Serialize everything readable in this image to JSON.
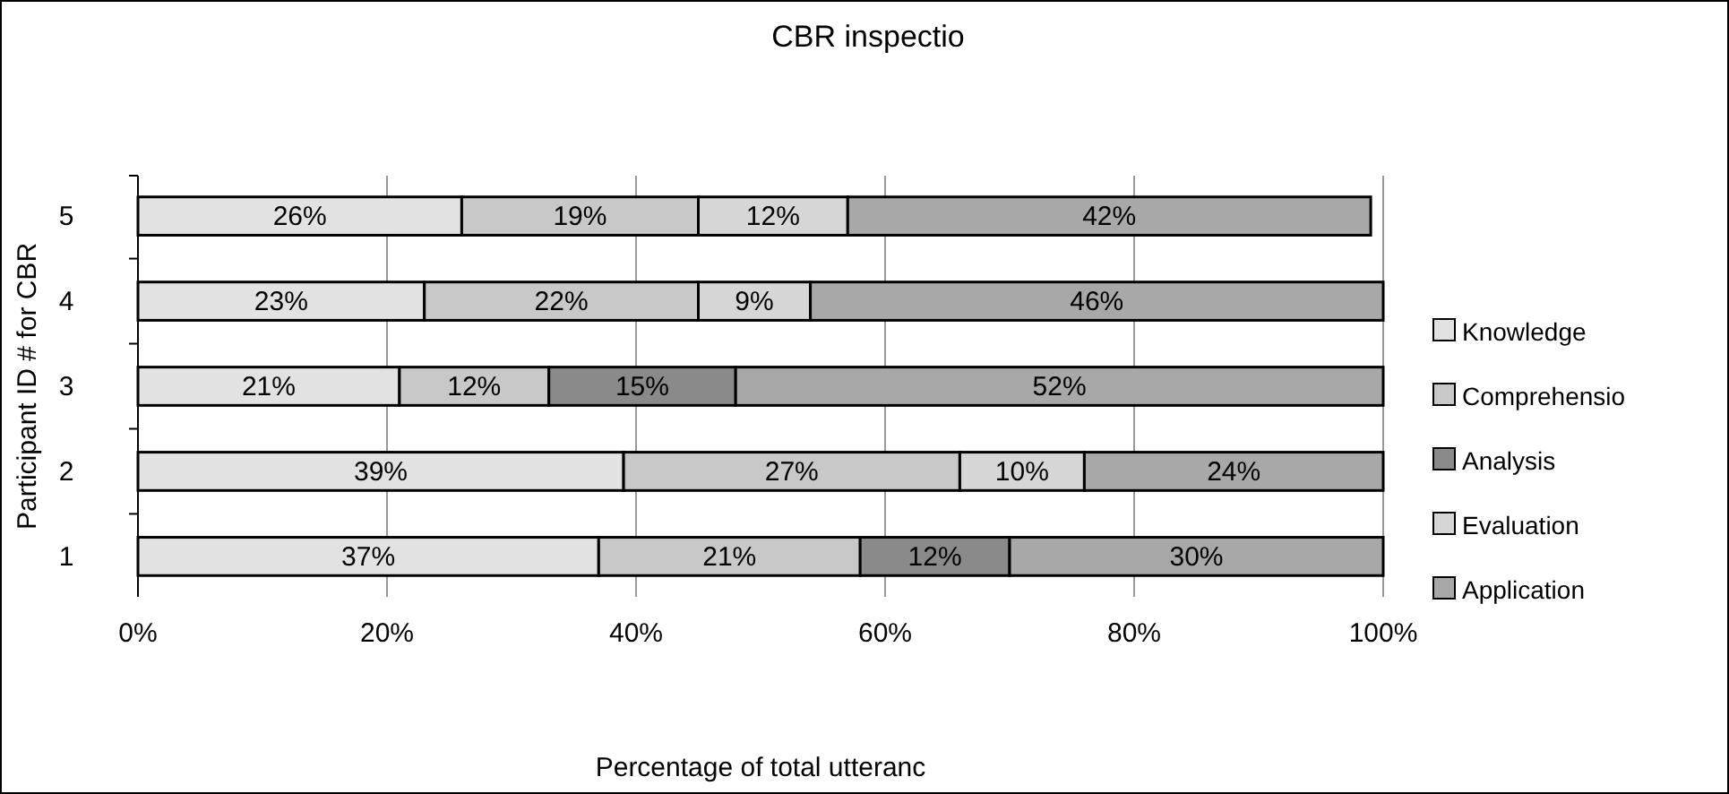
{
  "chart_data": {
    "type": "bar",
    "orientation": "horizontal",
    "stacked": true,
    "title": "CBR inspectio",
    "xlabel": "Percentage of total utteranc",
    "ylabel": "Participant ID # for CBR",
    "categories": [
      "5",
      "4",
      "3",
      "2",
      "1"
    ],
    "series": [
      {
        "name": "Knowledge",
        "color": "#e2e2e2",
        "values": [
          26,
          23,
          21,
          39,
          37
        ],
        "value_labels": [
          "26%",
          "23%",
          "21%",
          "39%",
          "37%"
        ]
      },
      {
        "name": "Comprehensio",
        "color": "#c8c8c8",
        "values": [
          19,
          22,
          12,
          27,
          21
        ],
        "value_labels": [
          "19%",
          "22%",
          "12%",
          "27%",
          "21%"
        ]
      },
      {
        "name": "Analysis",
        "color": "#8a8a8a",
        "values": [
          null,
          null,
          15,
          null,
          12
        ],
        "value_labels": [
          null,
          null,
          "15%",
          null,
          "12%"
        ]
      },
      {
        "name": "Evaluation",
        "color": "#d6d6d6",
        "values": [
          12,
          9,
          null,
          10,
          null
        ],
        "value_labels": [
          "12%",
          "9%",
          null,
          "10%",
          null
        ]
      },
      {
        "name": "Application",
        "color": "#a8a8a8",
        "values": [
          42,
          46,
          52,
          24,
          30
        ],
        "value_labels": [
          "42%",
          "46%",
          "52%",
          "24%",
          "30%"
        ]
      }
    ],
    "xlim": [
      0,
      100
    ],
    "xticks": [
      {
        "value": 0,
        "label": "0%"
      },
      {
        "value": 20,
        "label": "20%"
      },
      {
        "value": 40,
        "label": "40%"
      },
      {
        "value": 60,
        "label": "60%"
      },
      {
        "value": 80,
        "label": "80%"
      },
      {
        "value": 100,
        "label": "100%"
      }
    ],
    "grid": "x",
    "legend": "right"
  }
}
